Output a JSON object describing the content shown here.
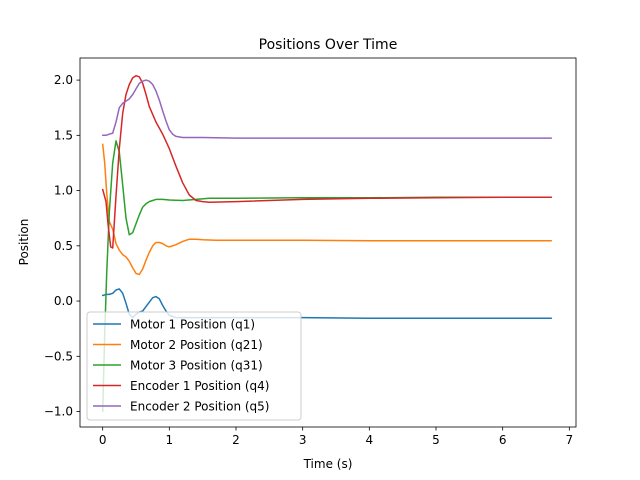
{
  "chart_data": {
    "type": "line",
    "title": "Positions Over Time",
    "xlabel": "Time (s)",
    "ylabel": "Position",
    "xlim": [
      -0.34,
      7.1
    ],
    "ylim": [
      -1.14,
      2.2
    ],
    "xticks": [
      0,
      1,
      2,
      3,
      4,
      5,
      6,
      7
    ],
    "yticks": [
      -1.0,
      -0.5,
      0.0,
      0.5,
      1.0,
      1.5,
      2.0
    ],
    "xtick_labels": [
      "0",
      "1",
      "2",
      "3",
      "4",
      "5",
      "6",
      "7"
    ],
    "ytick_labels": [
      "−1.0",
      "−0.5",
      "0.0",
      "0.5",
      "1.0",
      "1.5",
      "2.0"
    ],
    "grid": false,
    "legend_position": "lower-left",
    "series": [
      {
        "name": "Motor 1 Position (q1)",
        "color": "#1f77b4",
        "x": [
          0,
          0.05,
          0.1,
          0.15,
          0.2,
          0.25,
          0.3,
          0.35,
          0.4,
          0.45,
          0.5,
          0.55,
          0.6,
          0.65,
          0.7,
          0.75,
          0.8,
          0.85,
          0.9,
          0.95,
          1.0,
          1.1,
          1.2,
          1.3,
          1.5,
          2.0,
          3.0,
          4.0,
          5.0,
          6.0,
          6.73
        ],
        "y": [
          0.05,
          0.06,
          0.06,
          0.07,
          0.1,
          0.11,
          0.07,
          -0.02,
          -0.12,
          -0.15,
          -0.12,
          -0.1,
          -0.09,
          -0.05,
          -0.01,
          0.03,
          0.04,
          0.02,
          -0.04,
          -0.09,
          -0.13,
          -0.15,
          -0.15,
          -0.15,
          -0.15,
          -0.15,
          -0.15,
          -0.155,
          -0.155,
          -0.155,
          -0.155
        ]
      },
      {
        "name": "Motor 2 Position (q21)",
        "color": "#ff7f0e",
        "x": [
          0,
          0.03,
          0.06,
          0.1,
          0.15,
          0.2,
          0.25,
          0.3,
          0.35,
          0.4,
          0.45,
          0.5,
          0.55,
          0.6,
          0.65,
          0.7,
          0.75,
          0.8,
          0.85,
          0.9,
          0.95,
          1.0,
          1.1,
          1.2,
          1.3,
          1.4,
          1.5,
          1.7,
          2.0,
          3.0,
          4.0,
          5.0,
          6.0,
          6.73
        ],
        "y": [
          1.42,
          1.25,
          0.98,
          0.72,
          0.65,
          0.52,
          0.46,
          0.42,
          0.4,
          0.36,
          0.3,
          0.25,
          0.24,
          0.29,
          0.37,
          0.44,
          0.5,
          0.53,
          0.53,
          0.52,
          0.5,
          0.49,
          0.51,
          0.54,
          0.56,
          0.56,
          0.555,
          0.55,
          0.55,
          0.55,
          0.545,
          0.545,
          0.545,
          0.545
        ]
      },
      {
        "name": "Motor 3 Position (q31)",
        "color": "#2ca02c",
        "x": [
          0,
          0.03,
          0.06,
          0.1,
          0.15,
          0.2,
          0.25,
          0.3,
          0.35,
          0.4,
          0.45,
          0.5,
          0.55,
          0.6,
          0.65,
          0.7,
          0.75,
          0.8,
          0.9,
          1.0,
          1.2,
          1.4,
          1.6,
          2.0,
          3.0,
          4.0,
          5.0,
          6.0,
          6.73
        ],
        "y": [
          -1.0,
          -0.3,
          0.25,
          0.8,
          1.25,
          1.45,
          1.35,
          1.05,
          0.75,
          0.6,
          0.62,
          0.7,
          0.78,
          0.85,
          0.88,
          0.9,
          0.91,
          0.92,
          0.92,
          0.915,
          0.91,
          0.92,
          0.93,
          0.93,
          0.935,
          0.935,
          0.94,
          0.94,
          0.94
        ]
      },
      {
        "name": "Encoder 1 Position (q4)",
        "color": "#d62728",
        "x": [
          0,
          0.05,
          0.08,
          0.12,
          0.15,
          0.2,
          0.25,
          0.3,
          0.35,
          0.4,
          0.45,
          0.5,
          0.55,
          0.6,
          0.65,
          0.7,
          0.8,
          0.9,
          1.0,
          1.1,
          1.2,
          1.3,
          1.4,
          1.5,
          1.6,
          2.0,
          3.0,
          4.0,
          5.0,
          6.0,
          6.73
        ],
        "y": [
          1.01,
          0.9,
          0.7,
          0.49,
          0.48,
          0.95,
          1.38,
          1.7,
          1.87,
          1.96,
          2.02,
          2.04,
          2.03,
          1.97,
          1.87,
          1.76,
          1.62,
          1.51,
          1.38,
          1.22,
          1.07,
          0.96,
          0.91,
          0.9,
          0.895,
          0.9,
          0.92,
          0.93,
          0.935,
          0.94,
          0.94
        ]
      },
      {
        "name": "Encoder 2 Position (q5)",
        "color": "#9467bd",
        "x": [
          0,
          0.05,
          0.1,
          0.15,
          0.2,
          0.25,
          0.3,
          0.35,
          0.4,
          0.45,
          0.5,
          0.55,
          0.6,
          0.65,
          0.7,
          0.75,
          0.8,
          0.85,
          0.9,
          0.95,
          1.0,
          1.05,
          1.1,
          1.2,
          1.3,
          1.4,
          1.5,
          2.0,
          3.0,
          4.0,
          5.0,
          6.0,
          6.73
        ],
        "y": [
          1.5,
          1.5,
          1.51,
          1.52,
          1.62,
          1.75,
          1.79,
          1.81,
          1.83,
          1.87,
          1.92,
          1.97,
          1.99,
          2.0,
          1.99,
          1.96,
          1.9,
          1.82,
          1.72,
          1.63,
          1.55,
          1.51,
          1.49,
          1.48,
          1.48,
          1.48,
          1.48,
          1.475,
          1.475,
          1.475,
          1.475,
          1.475,
          1.475
        ]
      }
    ]
  }
}
